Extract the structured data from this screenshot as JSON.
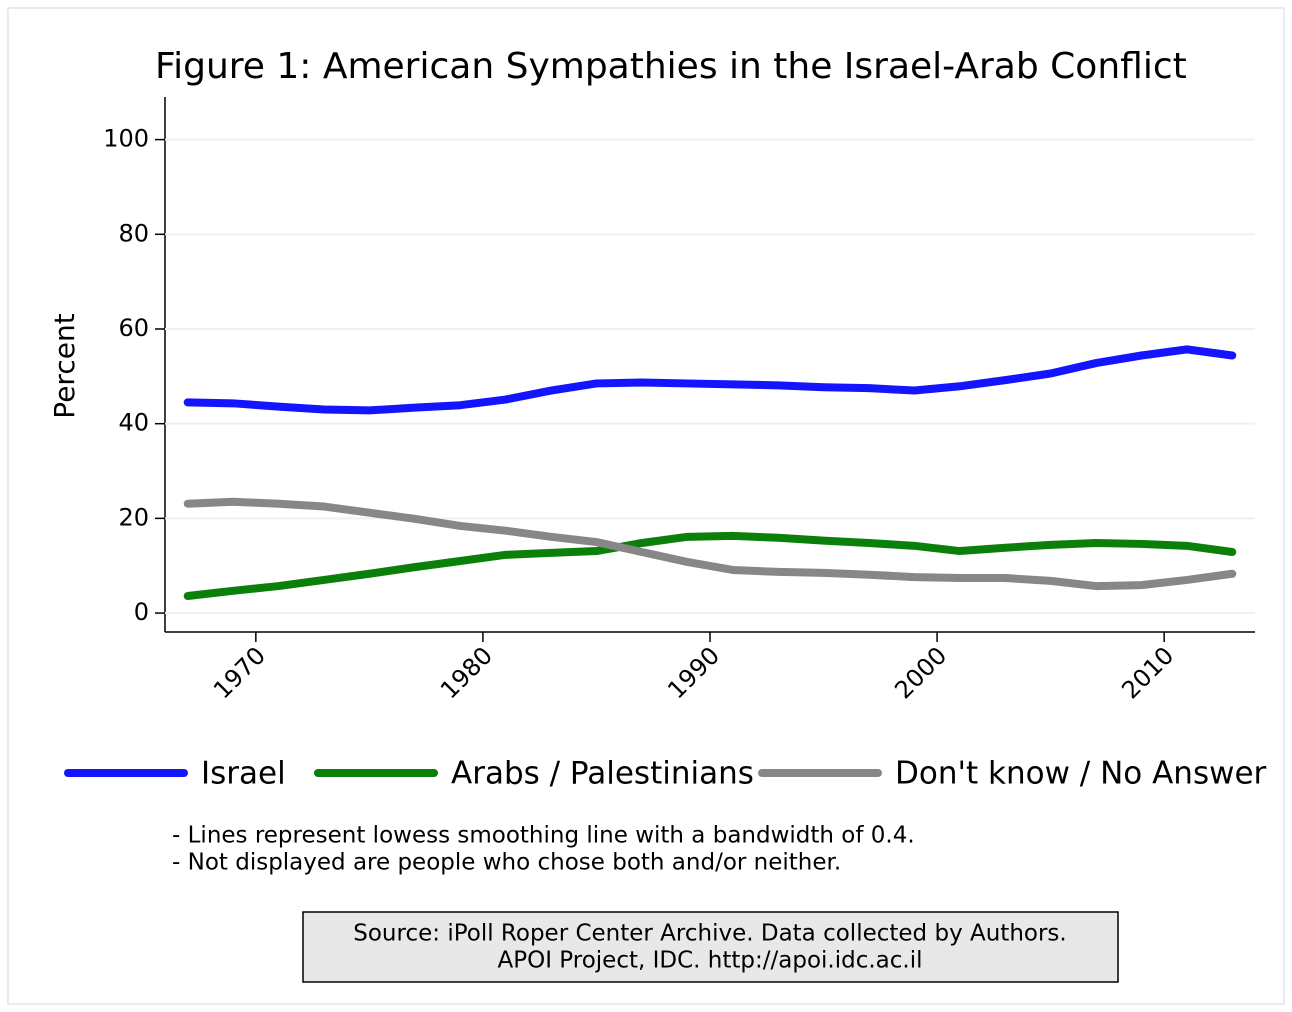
{
  "chart_data": {
    "type": "line",
    "title": "Figure 1: American Sympathies in the Israel-Arab Conflict",
    "y_label": "Percent",
    "x": [
      1967,
      1969,
      1971,
      1973,
      1975,
      1977,
      1979,
      1981,
      1983,
      1985,
      1987,
      1989,
      1991,
      1993,
      1995,
      1997,
      1999,
      2001,
      2003,
      2005,
      2007,
      2009,
      2011,
      2013
    ],
    "series": [
      {
        "name": "Israel",
        "color": "#1414ff",
        "values": [
          44.5,
          44.3,
          43.6,
          43,
          42.8,
          43.4,
          43.9,
          45.1,
          47,
          48.5,
          48.7,
          48.5,
          48.3,
          48.1,
          47.7,
          47.5,
          47,
          47.9,
          49.2,
          50.6,
          52.8,
          54.4,
          55.7,
          54.4
        ]
      },
      {
        "name": "Arabs / Palestinians",
        "color": "#0a800a",
        "values": [
          3.6,
          4.7,
          5.7,
          7,
          8.3,
          9.7,
          11,
          12.3,
          12.7,
          13.1,
          14.8,
          16.1,
          16.3,
          15.9,
          15.3,
          14.8,
          14.2,
          13.1,
          13.8,
          14.4,
          14.8,
          14.6,
          14.2,
          12.9
        ]
      },
      {
        "name": "Don't know / No Answer",
        "color": "#878787",
        "values": [
          23.1,
          23.5,
          23.1,
          22.5,
          21.2,
          19.9,
          18.4,
          17.4,
          16.1,
          15,
          12.9,
          10.8,
          9.1,
          8.7,
          8.5,
          8.1,
          7.6,
          7.4,
          7.4,
          6.8,
          5.7,
          5.9,
          7,
          8.3
        ]
      }
    ],
    "xlim": [
      1966,
      2014
    ],
    "xticks": [
      1970,
      1980,
      1990,
      2000,
      2010
    ],
    "ylim": [
      -4,
      109
    ],
    "yticks": [
      0,
      20,
      40,
      60,
      80,
      100
    ],
    "grid": true,
    "notes": [
      "- Lines represent lowess smoothing line with a bandwidth of 0.4.",
      "- Not displayed are people who chose both and/or neither."
    ],
    "source": [
      "Source: iPoll Roper Center Archive. Data collected by Authors.",
      "APOI Project, IDC. http://apoi.idc.ac.il"
    ]
  }
}
